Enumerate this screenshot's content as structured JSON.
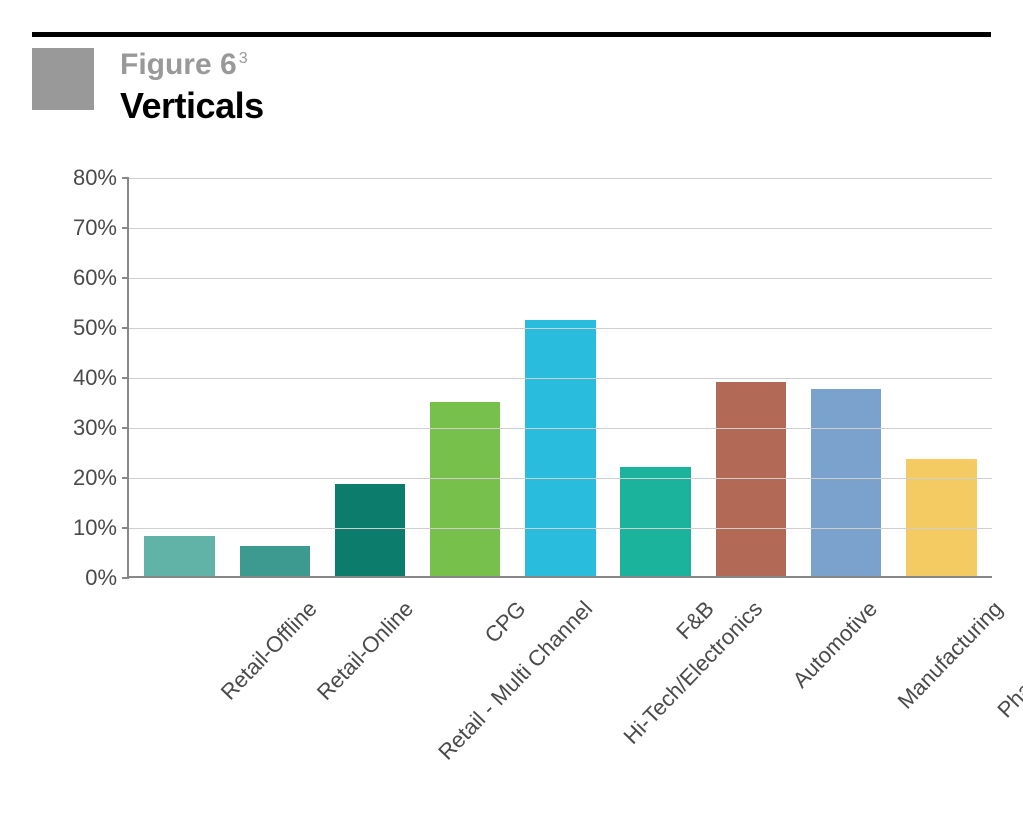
{
  "header": {
    "figure_label": "Figure 6",
    "superscript": "3",
    "title": "Verticals",
    "square_color": "#999999",
    "label_color": "#999999",
    "title_color": "#000000",
    "rule_color": "#000000"
  },
  "chart": {
    "type": "bar",
    "y_axis": {
      "min": 0,
      "max": 80,
      "tick_step": 10,
      "suffix": "%",
      "label_color": "#4a4a4a",
      "label_fontsize": 22,
      "axis_color": "#888888",
      "grid_color": "#cfcfcf"
    },
    "bar_width_ratio": 0.74,
    "categories": [
      "Retail-Offline",
      "Retail-Online",
      "Retail - Multi Channel",
      "CPG",
      "Hi-Tech/Electronics",
      "F&B",
      "Automotive",
      "Manufacturing",
      "Pharmaceutical"
    ],
    "values": [
      8,
      6,
      18.5,
      35,
      51.5,
      22,
      39,
      37.5,
      23.5
    ],
    "bar_colors": [
      "#61b2a7",
      "#3c9a91",
      "#0c7d6c",
      "#77c04b",
      "#29bcdd",
      "#1bb39c",
      "#b26956",
      "#7ba2cc",
      "#f4cb63"
    ],
    "x_label_rotation_deg": -46,
    "x_label_color": "#4a4a4a",
    "x_label_fontsize": 22,
    "background_color": "#ffffff"
  }
}
